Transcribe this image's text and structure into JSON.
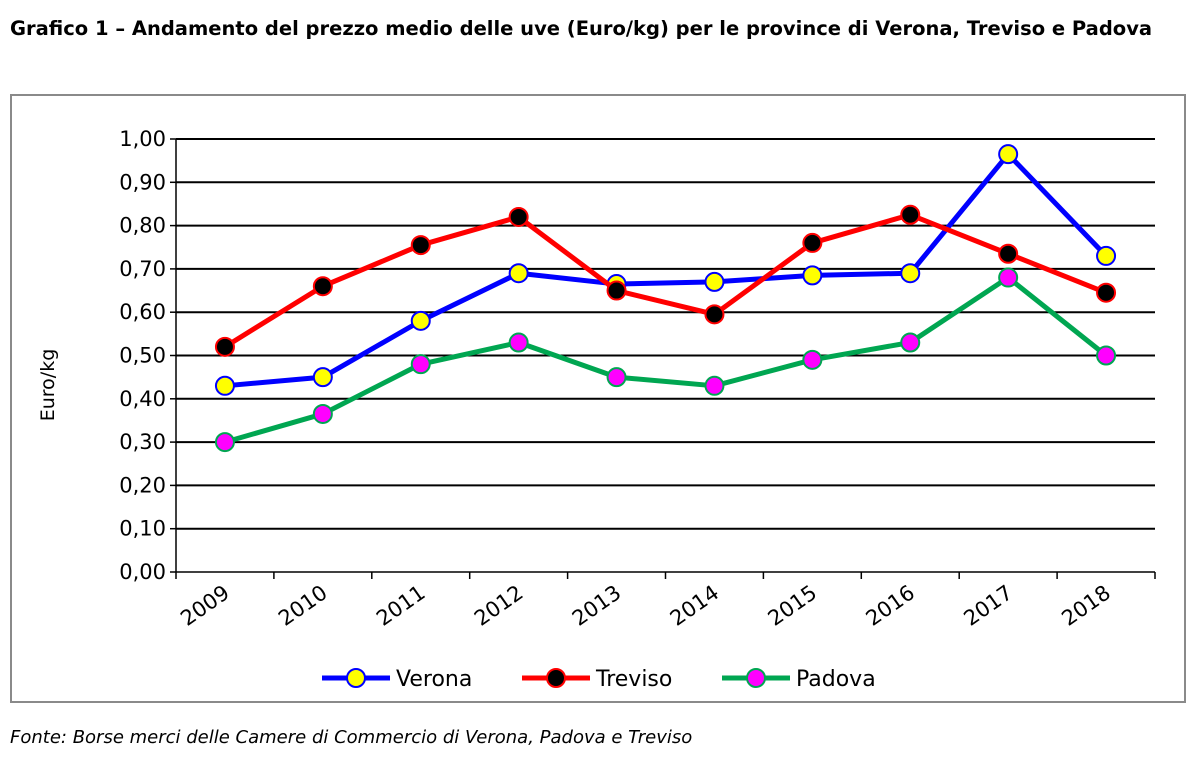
{
  "title": "Grafico 1 – Andamento del prezzo medio delle uve (Euro/kg) per le province di Verona, Treviso e Padova",
  "source": "Fonte: Borse merci delle Camere di Commercio di Verona, Padova e Treviso",
  "chart_data": {
    "type": "line",
    "title": "",
    "xlabel": "",
    "ylabel": "Euro/kg",
    "categories": [
      "2009",
      "2010",
      "2011",
      "2012",
      "2013",
      "2014",
      "2015",
      "2016",
      "2017",
      "2018"
    ],
    "ylim": [
      0,
      1.0
    ],
    "yticks": [
      "0,00",
      "0,10",
      "0,20",
      "0,30",
      "0,40",
      "0,50",
      "0,60",
      "0,70",
      "0,80",
      "0,90",
      "1,00"
    ],
    "grid": true,
    "legend_position": "bottom",
    "series": [
      {
        "name": "Verona",
        "line_color": "#0000ff",
        "marker_color": "#ffff00",
        "values": [
          0.43,
          0.45,
          0.58,
          0.69,
          0.665,
          0.67,
          0.685,
          0.69,
          0.965,
          0.73
        ]
      },
      {
        "name": "Treviso",
        "line_color": "#ff0000",
        "marker_color": "#000000",
        "values": [
          0.52,
          0.66,
          0.755,
          0.82,
          0.65,
          0.595,
          0.76,
          0.825,
          0.735,
          0.645
        ]
      },
      {
        "name": "Padova",
        "line_color": "#00a651",
        "marker_color": "#ff00ff",
        "values": [
          0.3,
          0.365,
          0.48,
          0.53,
          0.45,
          0.43,
          0.49,
          0.53,
          0.68,
          0.5
        ]
      }
    ]
  }
}
